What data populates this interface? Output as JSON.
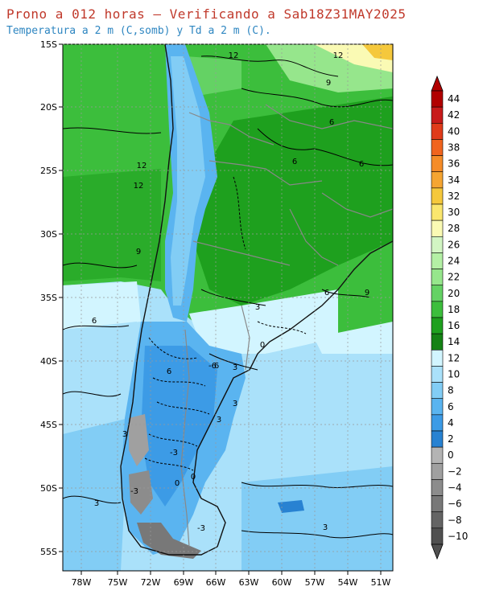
{
  "title": "Prono a 012 horas — Verificando a Sab18Z31MAY2025",
  "subtitle": "Temperatura a 2 m (C,somb) y Td a 2 m (C).",
  "lat_labels": [
    "15S",
    "20S",
    "25S",
    "30S",
    "35S",
    "40S",
    "45S",
    "50S",
    "55S"
  ],
  "lon_labels": [
    "78W",
    "75W",
    "72W",
    "69W",
    "66W",
    "63W",
    "60W",
    "57W",
    "54W",
    "51W"
  ],
  "colorbar": {
    "levels": [
      "44",
      "42",
      "40",
      "38",
      "36",
      "34",
      "32",
      "30",
      "28",
      "26",
      "24",
      "22",
      "20",
      "18",
      "16",
      "14",
      "12",
      "10",
      "8",
      "6",
      "4",
      "2",
      "0",
      "−2",
      "−4",
      "−6",
      "−8",
      "−10"
    ],
    "colors": [
      "#b10000",
      "#c81a1a",
      "#e03b1a",
      "#f0641e",
      "#f58c28",
      "#f5a532",
      "#f5c83c",
      "#fae66e",
      "#fafab4",
      "#d2f5c3",
      "#b4f0a5",
      "#96e68c",
      "#64d264",
      "#3cbe3c",
      "#1ea01e",
      "#148214",
      "#d2f5ff",
      "#aae1fa",
      "#82cdf5",
      "#5ab4f0",
      "#3c9be6",
      "#2882d2",
      "#b4b4b4",
      "#a0a0a0",
      "#8c8c8c",
      "#787878",
      "#646464",
      "#505050"
    ]
  },
  "contour_labels": [
    "12",
    "12",
    "9",
    "6",
    "6",
    "12",
    "12",
    "9",
    "6",
    "9",
    "3",
    "6",
    "0",
    "3",
    "6",
    "6",
    "-6",
    "3",
    "3",
    "3",
    "-3",
    "0",
    "0",
    "-3",
    "-3",
    "3",
    "6",
    "3"
  ],
  "colors": {
    "title": "#c0392b",
    "subtitle": "#2e86c1",
    "ocean_cold": "#aae1fa",
    "land_warm": "#3cbe3c",
    "andes": "#5ab4f0",
    "patagonia": "#82cdf5"
  }
}
